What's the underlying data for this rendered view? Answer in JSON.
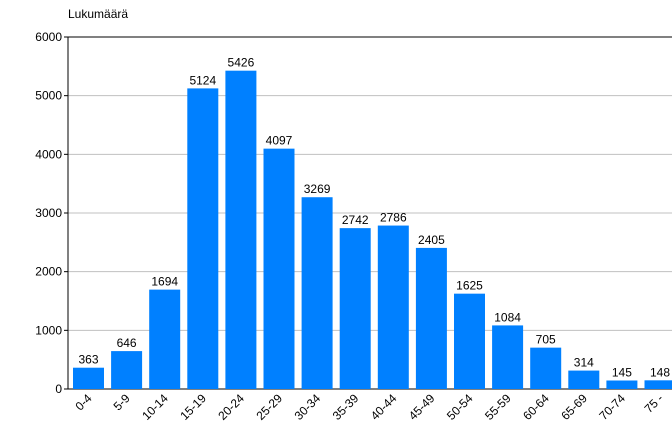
{
  "chart_data": {
    "type": "bar",
    "y_label": "Lukumäärä",
    "categories": [
      "0-4",
      "5-9",
      "10-14",
      "15-19",
      "20-24",
      "25-29",
      "30-34",
      "35-39",
      "40-44",
      "45-49",
      "50-54",
      "55-59",
      "60-64",
      "65-69",
      "70-74",
      "75 -"
    ],
    "values": [
      363,
      646,
      1694,
      5124,
      5426,
      4097,
      3269,
      2742,
      2786,
      2405,
      1625,
      1084,
      705,
      314,
      145,
      148
    ],
    "color": "#0080ff",
    "ylim": [
      0,
      6000
    ],
    "yticks": [
      0,
      1000,
      2000,
      3000,
      4000,
      5000,
      6000
    ],
    "grid": true
  }
}
